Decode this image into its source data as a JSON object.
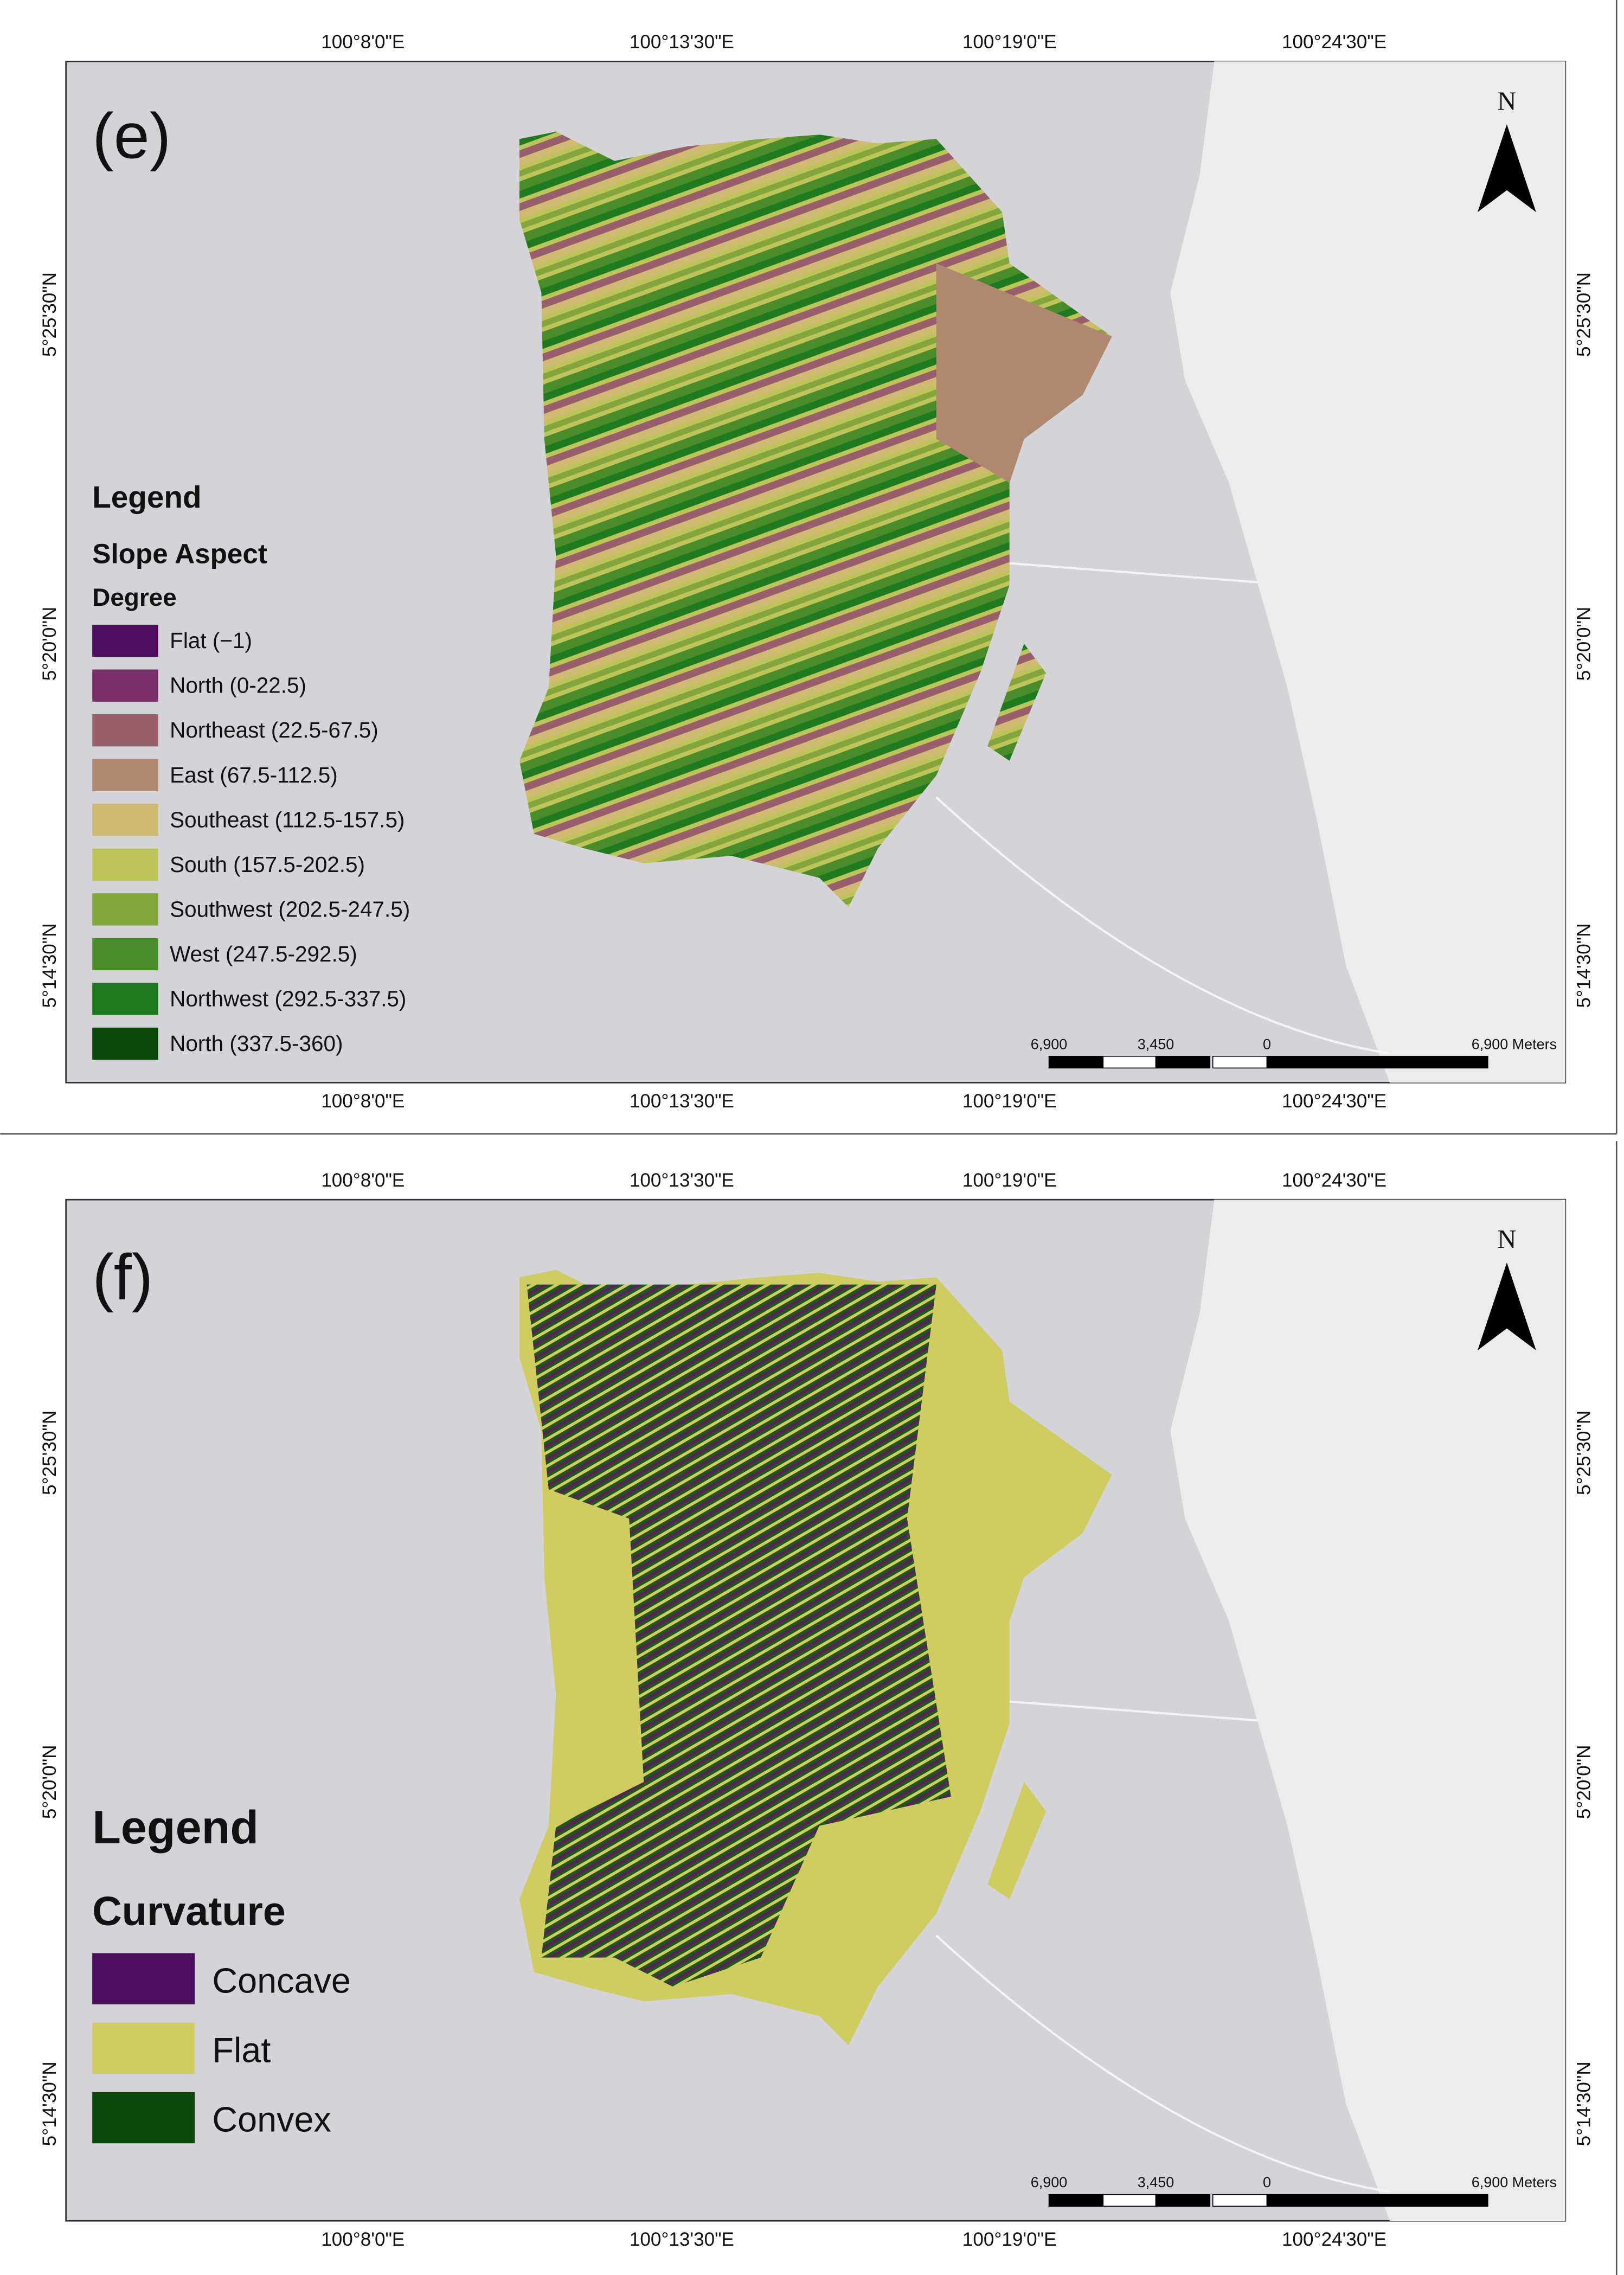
{
  "panels": [
    {
      "label": "(e)",
      "legend_title": "Legend",
      "legend_subtitle": "Slope Aspect",
      "legend_unit": "Degree",
      "legend": [
        {
          "label": "Flat (−1)",
          "color": "#4b0d5c"
        },
        {
          "label": "North (0-22.5)",
          "color": "#7a2f68"
        },
        {
          "label": "Northeast (22.5-67.5)",
          "color": "#985e6c"
        },
        {
          "label": "East (67.5-112.5)",
          "color": "#b08870"
        },
        {
          "label": "Southeast (112.5-157.5)",
          "color": "#d0bb72"
        },
        {
          "label": "South (157.5-202.5)",
          "color": "#bcc45a"
        },
        {
          "label": "Southwest (202.5-247.5)",
          "color": "#83a63c"
        },
        {
          "label": "West (247.5-292.5)",
          "color": "#4a8c2a"
        },
        {
          "label": "Northwest (292.5-337.5)",
          "color": "#1f7a1f"
        },
        {
          "label": "North (337.5-360)",
          "color": "#0c4a0c"
        }
      ],
      "x_labels": [
        "100°8'0\"E",
        "100°13'30\"E",
        "100°19'0\"E",
        "100°24'30\"E"
      ],
      "y_labels": [
        "5°25'30\"N",
        "5°20'0\"N",
        "5°14'30\"N"
      ],
      "scale_labels": [
        "6,900",
        "3,450",
        "0",
        "6,900 Meters"
      ],
      "north": "N"
    },
    {
      "label": "(f)",
      "legend_title": "Legend",
      "legend_subtitle": "Curvature",
      "legend": [
        {
          "label": "Concave",
          "color": "#4b0d5c"
        },
        {
          "label": "Flat",
          "color": "#cfcd62"
        },
        {
          "label": "Convex",
          "color": "#0c4a0c"
        }
      ],
      "x_labels": [
        "100°8'0\"E",
        "100°13'30\"E",
        "100°19'0\"E",
        "100°24'30\"E"
      ],
      "y_labels": [
        "5°25'30\"N",
        "5°20'0\"N",
        "5°14'30\"N"
      ],
      "scale_labels": [
        "6,900",
        "3,450",
        "0",
        "6,900 Meters"
      ],
      "north": "N"
    }
  ]
}
